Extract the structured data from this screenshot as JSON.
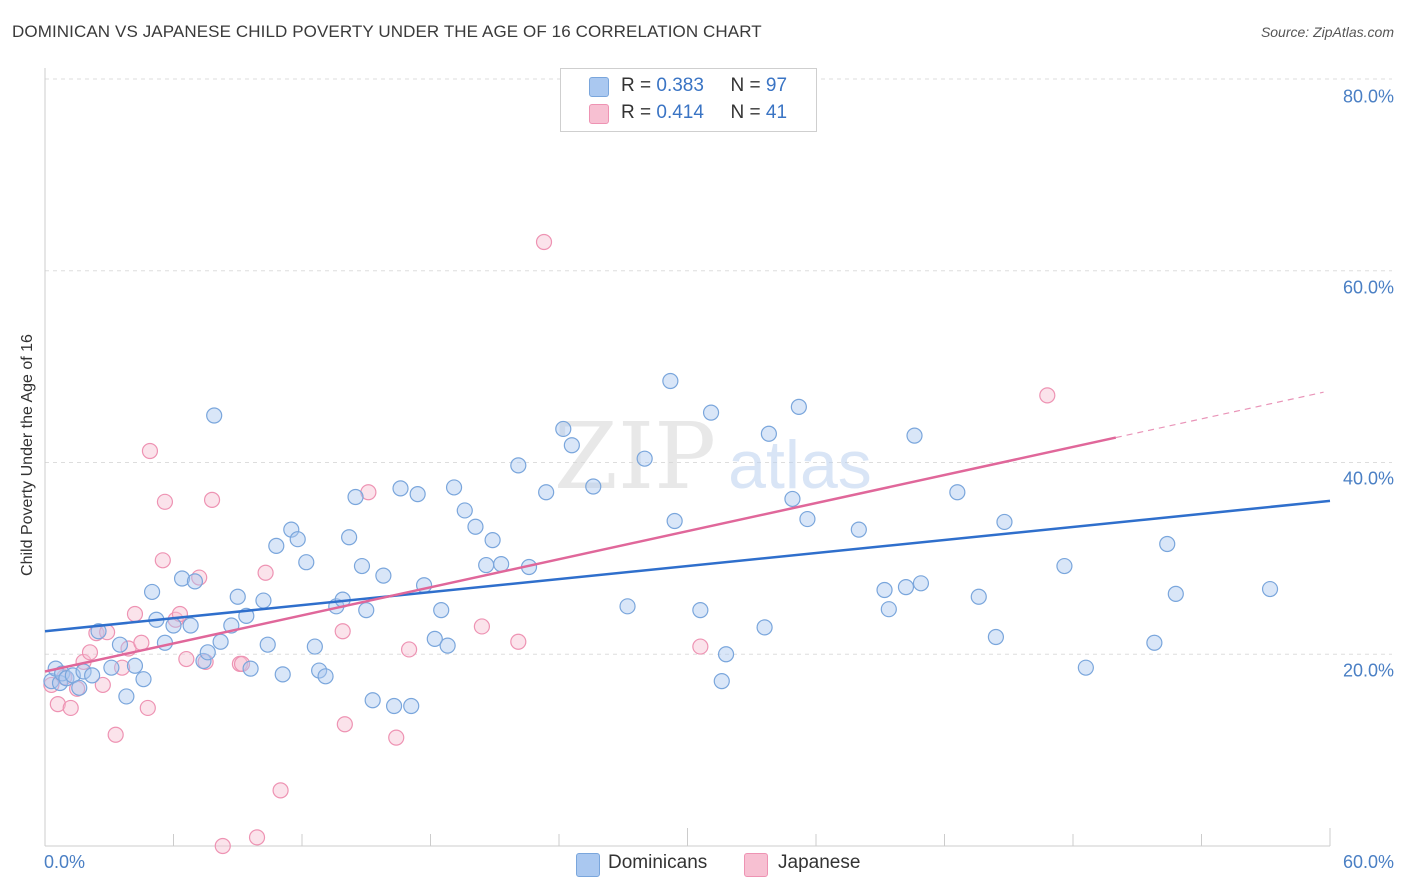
{
  "title": "DOMINICAN VS JAPANESE CHILD POVERTY UNDER THE AGE OF 16 CORRELATION CHART",
  "source": "Source: ZipAtlas.com",
  "watermark": {
    "zip": "ZIP",
    "atlas": "atlas"
  },
  "legend": {
    "rows": [
      {
        "r_label": "R =",
        "r_value": "0.383",
        "n_label": "N =",
        "n_value": "97"
      },
      {
        "r_label": "R =",
        "r_value": "0.414",
        "n_label": "N =",
        "n_value": "41"
      }
    ]
  },
  "bottom_legend": {
    "dominicans": "Dominicans",
    "japanese": "Japanese"
  },
  "axis": {
    "y_title": "Child Poverty Under the Age of 16",
    "y_ticks": [
      "80.0%",
      "60.0%",
      "40.0%",
      "20.0%"
    ],
    "x_min_label": "0.0%",
    "x_max_label": "60.0%"
  },
  "colors": {
    "blue_fill": "#aac8f0",
    "blue_stroke": "#7aa6dc",
    "blue_line": "#2f6fcc",
    "pink_fill": "#f7c0d2",
    "pink_stroke": "#ee93b3",
    "pink_line": "#e0679a",
    "grid": "#dddddd",
    "tick_text": "#4a7fc4"
  },
  "chart_data": {
    "type": "scatter",
    "xlim": [
      0,
      60
    ],
    "ylim": [
      0,
      80
    ],
    "grid": true,
    "legend_position": "top-center",
    "series": [
      {
        "name": "Dominicans",
        "r": 0.383,
        "n": 97,
        "trend": {
          "x0": 0,
          "y0": 22.4,
          "x1": 60,
          "y1": 36.0
        },
        "points": [
          [
            0.3,
            17.2
          ],
          [
            0.5,
            18.5
          ],
          [
            0.7,
            17.0
          ],
          [
            0.8,
            18.0
          ],
          [
            1.0,
            17.5
          ],
          [
            1.3,
            17.8
          ],
          [
            1.6,
            16.5
          ],
          [
            1.8,
            18.2
          ],
          [
            2.2,
            17.8
          ],
          [
            2.5,
            22.4
          ],
          [
            3.1,
            18.6
          ],
          [
            3.5,
            21.0
          ],
          [
            3.8,
            15.6
          ],
          [
            4.2,
            18.8
          ],
          [
            4.6,
            17.4
          ],
          [
            5.0,
            26.5
          ],
          [
            5.2,
            23.6
          ],
          [
            5.6,
            21.2
          ],
          [
            6.0,
            23.0
          ],
          [
            6.4,
            27.9
          ],
          [
            6.8,
            23.0
          ],
          [
            7.0,
            27.6
          ],
          [
            7.4,
            19.3
          ],
          [
            7.6,
            20.2
          ],
          [
            7.9,
            44.9
          ],
          [
            8.2,
            21.3
          ],
          [
            8.7,
            23.0
          ],
          [
            9.0,
            26.0
          ],
          [
            9.4,
            24.0
          ],
          [
            9.6,
            18.5
          ],
          [
            10.2,
            25.6
          ],
          [
            10.4,
            21.0
          ],
          [
            10.8,
            31.3
          ],
          [
            11.1,
            17.9
          ],
          [
            11.5,
            33.0
          ],
          [
            11.8,
            32.0
          ],
          [
            12.2,
            29.6
          ],
          [
            12.6,
            20.8
          ],
          [
            12.8,
            18.3
          ],
          [
            13.1,
            17.7
          ],
          [
            13.6,
            25.0
          ],
          [
            13.9,
            25.7
          ],
          [
            14.2,
            32.2
          ],
          [
            14.5,
            36.4
          ],
          [
            14.8,
            29.2
          ],
          [
            15.0,
            24.6
          ],
          [
            15.3,
            15.2
          ],
          [
            15.8,
            28.2
          ],
          [
            16.3,
            14.6
          ],
          [
            16.6,
            37.3
          ],
          [
            17.1,
            14.6
          ],
          [
            17.4,
            36.7
          ],
          [
            17.7,
            27.2
          ],
          [
            18.2,
            21.6
          ],
          [
            18.5,
            24.6
          ],
          [
            18.8,
            20.9
          ],
          [
            19.1,
            37.4
          ],
          [
            19.6,
            35.0
          ],
          [
            20.1,
            33.3
          ],
          [
            20.6,
            29.3
          ],
          [
            20.9,
            31.9
          ],
          [
            21.3,
            29.4
          ],
          [
            22.1,
            39.7
          ],
          [
            22.6,
            29.1
          ],
          [
            23.4,
            36.9
          ],
          [
            24.2,
            43.5
          ],
          [
            24.6,
            41.8
          ],
          [
            25.6,
            37.5
          ],
          [
            27.2,
            25.0
          ],
          [
            28.0,
            40.4
          ],
          [
            29.2,
            48.5
          ],
          [
            29.4,
            33.9
          ],
          [
            30.6,
            24.6
          ],
          [
            31.1,
            45.2
          ],
          [
            31.6,
            17.2
          ],
          [
            31.8,
            20.0
          ],
          [
            33.6,
            22.8
          ],
          [
            33.8,
            43.0
          ],
          [
            34.9,
            36.2
          ],
          [
            35.2,
            45.8
          ],
          [
            35.6,
            34.1
          ],
          [
            38.0,
            33.0
          ],
          [
            39.2,
            26.7
          ],
          [
            39.4,
            24.7
          ],
          [
            40.2,
            27.0
          ],
          [
            40.6,
            42.8
          ],
          [
            40.9,
            27.4
          ],
          [
            42.6,
            36.9
          ],
          [
            43.6,
            26.0
          ],
          [
            44.4,
            21.8
          ],
          [
            44.8,
            33.8
          ],
          [
            47.6,
            29.2
          ],
          [
            48.6,
            18.6
          ],
          [
            51.8,
            21.2
          ],
          [
            52.4,
            31.5
          ],
          [
            52.8,
            26.3
          ],
          [
            57.2,
            26.8
          ]
        ]
      },
      {
        "name": "Japanese",
        "r": 0.414,
        "n": 41,
        "trend": {
          "x0": 0,
          "y0": 18.2,
          "x1": 50,
          "y1": 42.6
        },
        "points": [
          [
            0.3,
            16.8
          ],
          [
            0.6,
            14.8
          ],
          [
            0.9,
            17.6
          ],
          [
            1.2,
            14.4
          ],
          [
            1.5,
            16.4
          ],
          [
            1.8,
            19.2
          ],
          [
            2.1,
            20.2
          ],
          [
            2.4,
            22.2
          ],
          [
            2.7,
            16.8
          ],
          [
            2.9,
            22.3
          ],
          [
            3.3,
            11.6
          ],
          [
            3.6,
            18.6
          ],
          [
            3.9,
            20.6
          ],
          [
            4.2,
            24.2
          ],
          [
            4.5,
            21.2
          ],
          [
            4.8,
            14.4
          ],
          [
            4.9,
            41.2
          ],
          [
            5.5,
            29.8
          ],
          [
            5.6,
            35.9
          ],
          [
            6.1,
            23.6
          ],
          [
            6.3,
            24.2
          ],
          [
            6.6,
            19.5
          ],
          [
            7.2,
            28.0
          ],
          [
            7.5,
            19.2
          ],
          [
            7.8,
            36.1
          ],
          [
            9.1,
            19.0
          ],
          [
            9.2,
            19.0
          ],
          [
            9.9,
            0.9
          ],
          [
            10.3,
            28.5
          ],
          [
            11.0,
            5.8
          ],
          [
            13.9,
            22.4
          ],
          [
            14.0,
            12.7
          ],
          [
            15.1,
            36.9
          ],
          [
            16.4,
            11.3
          ],
          [
            17.0,
            20.5
          ],
          [
            20.4,
            22.9
          ],
          [
            22.1,
            21.3
          ],
          [
            23.3,
            63.0
          ],
          [
            30.6,
            20.8
          ],
          [
            46.8,
            47.0
          ],
          [
            8.3,
            0.0
          ]
        ]
      }
    ]
  }
}
